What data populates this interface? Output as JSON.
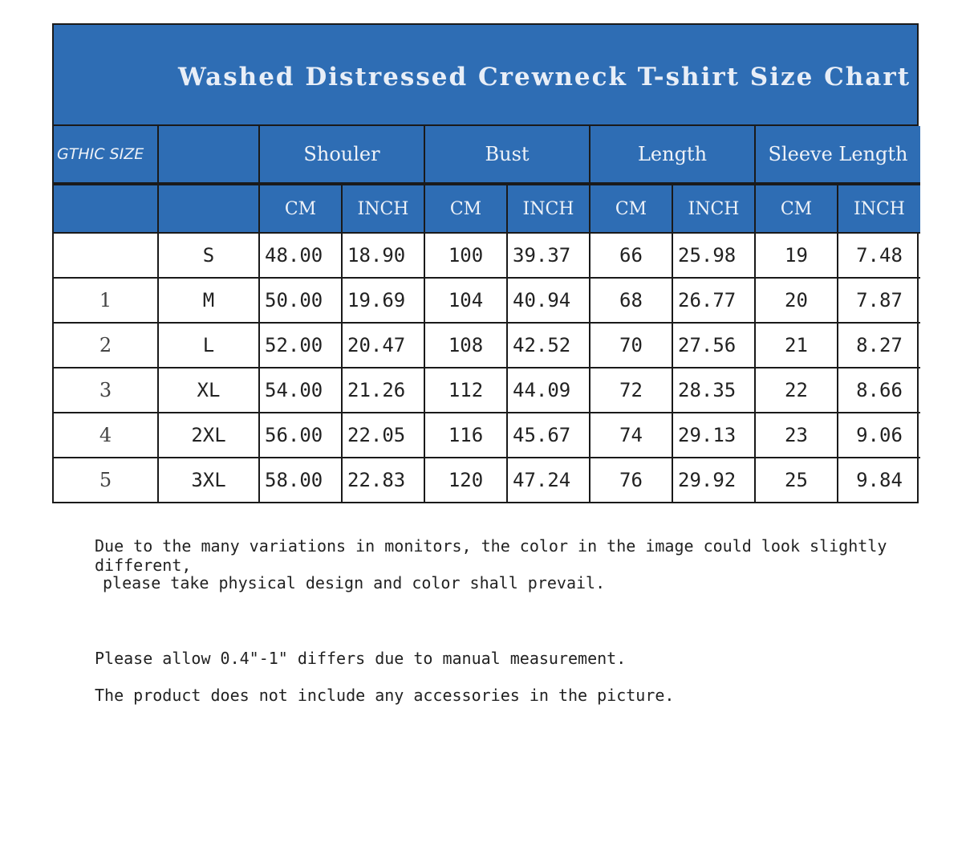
{
  "title": "Washed Distressed Crewneck T-shirt Size Chart",
  "header": {
    "gothic_size": "GTHIC SIZE",
    "groups": [
      "Shouler",
      "Bust",
      "Length",
      "Sleeve Length"
    ],
    "units": [
      "CM",
      "INCH",
      "CM",
      "INCH",
      "CM",
      "INCH",
      "CM",
      "INCH"
    ]
  },
  "colors": {
    "header_bg": "#2e6db4",
    "header_text": "#eef2f8"
  },
  "rows": [
    {
      "num": "",
      "size": "S",
      "values": [
        "48.00",
        "18.90",
        "100",
        "39.37",
        "66",
        "25.98",
        "19",
        "7.48"
      ]
    },
    {
      "num": "1",
      "size": "M",
      "values": [
        "50.00",
        "19.69",
        "104",
        "40.94",
        "68",
        "26.77",
        "20",
        "7.87"
      ]
    },
    {
      "num": "2",
      "size": "L",
      "values": [
        "52.00",
        "20.47",
        "108",
        "42.52",
        "70",
        "27.56",
        "21",
        "8.27"
      ]
    },
    {
      "num": "3",
      "size": "XL",
      "values": [
        "54.00",
        "21.26",
        "112",
        "44.09",
        "72",
        "28.35",
        "22",
        "8.66"
      ]
    },
    {
      "num": "4",
      "size": "2XL",
      "values": [
        "56.00",
        "22.05",
        "116",
        "45.67",
        "74",
        "29.13",
        "23",
        "9.06"
      ]
    },
    {
      "num": "5",
      "size": "3XL",
      "values": [
        "58.00",
        "22.83",
        "120",
        "47.24",
        "76",
        "29.92",
        "25",
        "9.84"
      ]
    }
  ],
  "notes": [
    "Due to the many variations in monitors, the color in the image could look slightly different,",
    " please take physical design and color shall prevail.",
    "Please allow 0.4\"-1\" differs due to manual measurement.",
    "The product does not include any accessories in the picture."
  ]
}
